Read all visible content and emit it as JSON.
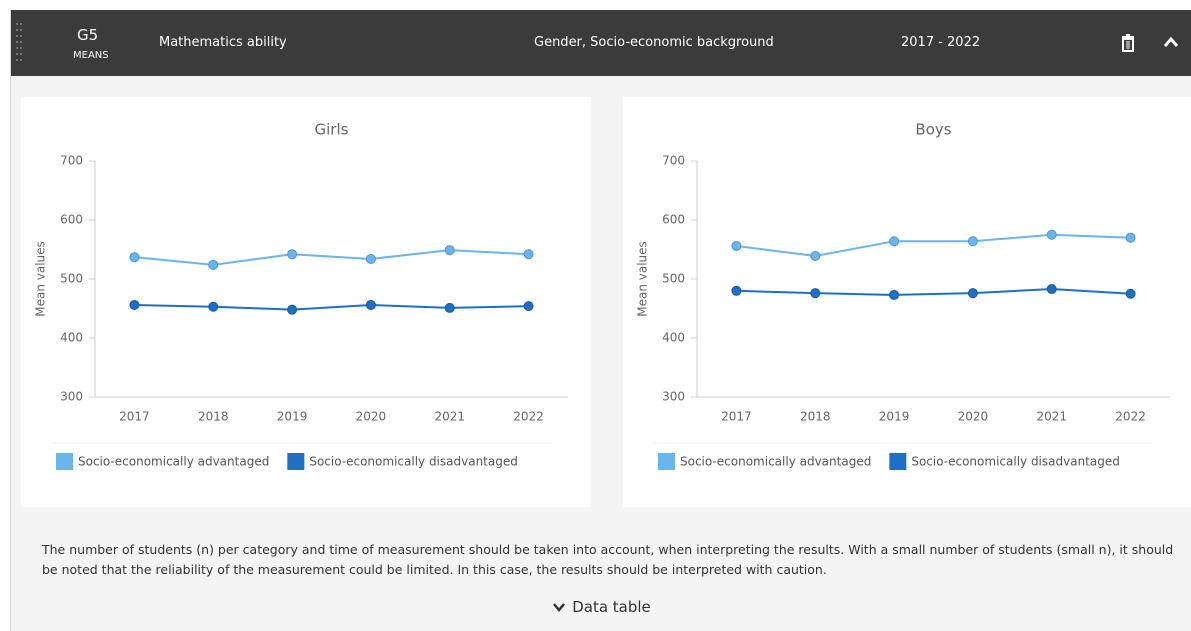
{
  "header": {
    "code": "G5",
    "kind": "MEANS",
    "subject": "Mathematics ability",
    "grouping": "Gender, Socio-economic background",
    "period": "2017 - 2022"
  },
  "chart_data": [
    {
      "type": "line",
      "title": "Girls",
      "y_label": "Mean values",
      "categories": [
        "2017",
        "2018",
        "2019",
        "2020",
        "2021",
        "2022"
      ],
      "series": [
        {
          "name": "Socio-economically advantaged",
          "color": "#6cb4ec",
          "values": [
            537,
            524,
            542,
            534,
            549,
            542
          ]
        },
        {
          "name": "Socio-economically disadvantaged",
          "color": "#1f6fc5",
          "values": [
            456,
            453,
            448,
            456,
            451,
            454
          ]
        }
      ],
      "ylim": [
        300,
        700
      ],
      "yticks": [
        300,
        400,
        500,
        600,
        700
      ],
      "grid": false,
      "legend": "bottom"
    },
    {
      "type": "line",
      "title": "Boys",
      "y_label": "Mean values",
      "categories": [
        "2017",
        "2018",
        "2019",
        "2020",
        "2021",
        "2022"
      ],
      "series": [
        {
          "name": "Socio-economically advantaged",
          "color": "#6cb4ec",
          "values": [
            556,
            539,
            564,
            564,
            575,
            570
          ]
        },
        {
          "name": "Socio-economically disadvantaged",
          "color": "#1f6fc5",
          "values": [
            480,
            476,
            473,
            476,
            483,
            475
          ]
        }
      ],
      "ylim": [
        300,
        700
      ],
      "yticks": [
        300,
        400,
        500,
        600,
        700
      ],
      "grid": false,
      "legend": "bottom"
    }
  ],
  "note": "The number of students (n) per category and time of measurement should be taken into account, when interpreting the results. With a small number of students (small n), it should be noted that the reliability of the measurement could be limited. In this case, the results should be interpreted with caution.",
  "data_table": "Data table"
}
